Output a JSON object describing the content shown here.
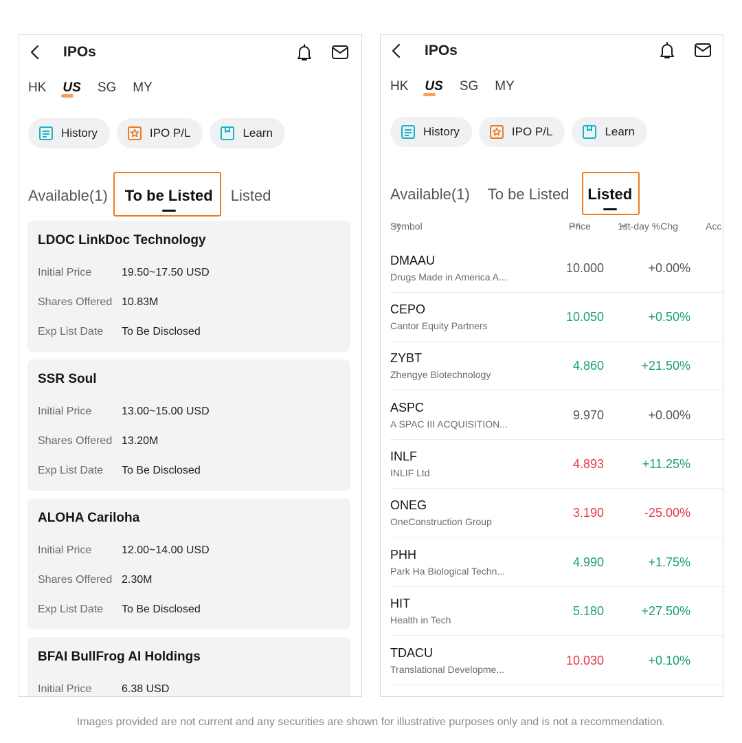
{
  "left": {
    "title": "IPOs",
    "markets": [
      "HK",
      "US",
      "SG",
      "MY"
    ],
    "pills": [
      "History",
      "IPO P/L",
      "Learn"
    ],
    "tabs": [
      "Available(1)",
      "To be Listed",
      "Listed"
    ],
    "labels": {
      "price": "Initial Price",
      "shares": "Shares Offered",
      "date": "Exp List Date"
    },
    "cards": [
      {
        "title": "LDOC LinkDoc Technology",
        "price": "19.50~17.50 USD",
        "shares": "10.83M",
        "date": "To Be Disclosed"
      },
      {
        "title": "SSR Soul",
        "price": "13.00~15.00 USD",
        "shares": "13.20M",
        "date": "To Be Disclosed"
      },
      {
        "title": "ALOHA Cariloha",
        "price": "12.00~14.00 USD",
        "shares": "2.30M",
        "date": "To Be Disclosed"
      },
      {
        "title": "BFAI BullFrog AI Holdings",
        "price": "6.38 USD"
      }
    ]
  },
  "right": {
    "title": "IPOs",
    "markets": [
      "HK",
      "US",
      "SG",
      "MY"
    ],
    "pills": [
      "History",
      "IPO P/L",
      "Learn"
    ],
    "tabs": [
      "Available(1)",
      "To be Listed",
      "Listed"
    ],
    "columns": [
      "Symbol",
      "Price",
      "1st-day %Chg",
      "Acc"
    ],
    "rows": [
      {
        "symbol": "DMAAU",
        "name": "Drugs Made in America A...",
        "price": "10.000",
        "change": "+0.00%",
        "tone": "gray"
      },
      {
        "symbol": "CEPO",
        "name": "Cantor Equity Partners",
        "price": "10.050",
        "change": "+0.50%",
        "tone": "green"
      },
      {
        "symbol": "ZYBT",
        "name": "Zhengye Biotechnology",
        "price": "4.860",
        "change": "+21.50%",
        "tone": "green"
      },
      {
        "symbol": "ASPC",
        "name": "A SPAC III ACQUISITION...",
        "price": "9.970",
        "change": "+0.00%",
        "tone": "gray"
      },
      {
        "symbol": "INLF",
        "name": "INLIF Ltd",
        "price": "4.893",
        "change": "+11.25%",
        "tone": "red-green"
      },
      {
        "symbol": "ONEG",
        "name": "OneConstruction Group",
        "price": "3.190",
        "change": "-25.00%",
        "tone": "red"
      },
      {
        "symbol": "PHH",
        "name": "Park Ha Biological Techn...",
        "price": "4.990",
        "change": "+1.75%",
        "tone": "green"
      },
      {
        "symbol": "HIT",
        "name": "Health in Tech",
        "price": "5.180",
        "change": "+27.50%",
        "tone": "green"
      },
      {
        "symbol": "TDACU",
        "name": "Translational Developme...",
        "price": "10.030",
        "change": "+0.10%",
        "tone": "red-green"
      }
    ]
  },
  "colors": {
    "accent": "#f07a1a",
    "up": "#1aa36c",
    "down": "#e5374b"
  },
  "icons": [
    "back-icon",
    "bell-icon",
    "mail-icon",
    "history-icon",
    "ipo-pl-icon",
    "learn-icon",
    "sort-icon"
  ],
  "disclaimer": "Images provided are not current and any securities are shown for illustrative purposes only and is not a recommendation."
}
